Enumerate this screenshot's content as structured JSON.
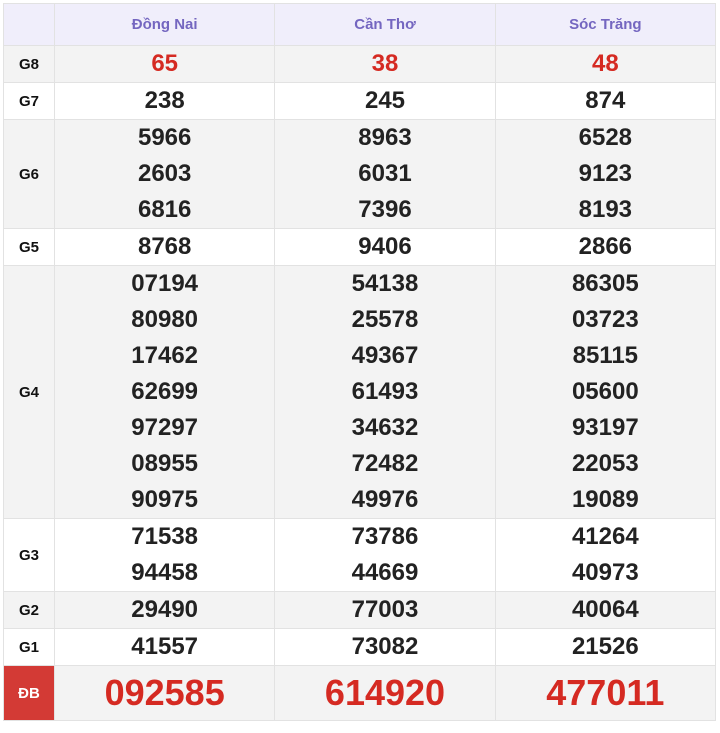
{
  "table": {
    "columns": [
      "Đồng Nai",
      "Cần Thơ",
      "Sóc Trăng"
    ],
    "rows": [
      {
        "label": "G8",
        "values": [
          [
            "65"
          ],
          [
            "38"
          ],
          [
            "48"
          ]
        ]
      },
      {
        "label": "G7",
        "values": [
          [
            "238"
          ],
          [
            "245"
          ],
          [
            "874"
          ]
        ]
      },
      {
        "label": "G6",
        "values": [
          [
            "5966",
            "2603",
            "6816"
          ],
          [
            "8963",
            "6031",
            "7396"
          ],
          [
            "6528",
            "9123",
            "8193"
          ]
        ]
      },
      {
        "label": "G5",
        "values": [
          [
            "8768"
          ],
          [
            "9406"
          ],
          [
            "2866"
          ]
        ]
      },
      {
        "label": "G4",
        "values": [
          [
            "07194",
            "80980",
            "17462",
            "62699",
            "97297",
            "08955",
            "90975"
          ],
          [
            "54138",
            "25578",
            "49367",
            "61493",
            "34632",
            "72482",
            "49976"
          ],
          [
            "86305",
            "03723",
            "85115",
            "05600",
            "93197",
            "22053",
            "19089"
          ]
        ]
      },
      {
        "label": "G3",
        "values": [
          [
            "71538",
            "94458"
          ],
          [
            "73786",
            "44669"
          ],
          [
            "41264",
            "40973"
          ]
        ]
      },
      {
        "label": "G2",
        "values": [
          [
            "29490"
          ],
          [
            "77003"
          ],
          [
            "40064"
          ]
        ]
      },
      {
        "label": "G1",
        "values": [
          [
            "41557"
          ],
          [
            "73082"
          ],
          [
            "21526"
          ]
        ]
      },
      {
        "label": "ĐB",
        "values": [
          [
            "092585"
          ],
          [
            "614920"
          ],
          [
            "477011"
          ]
        ]
      }
    ]
  }
}
